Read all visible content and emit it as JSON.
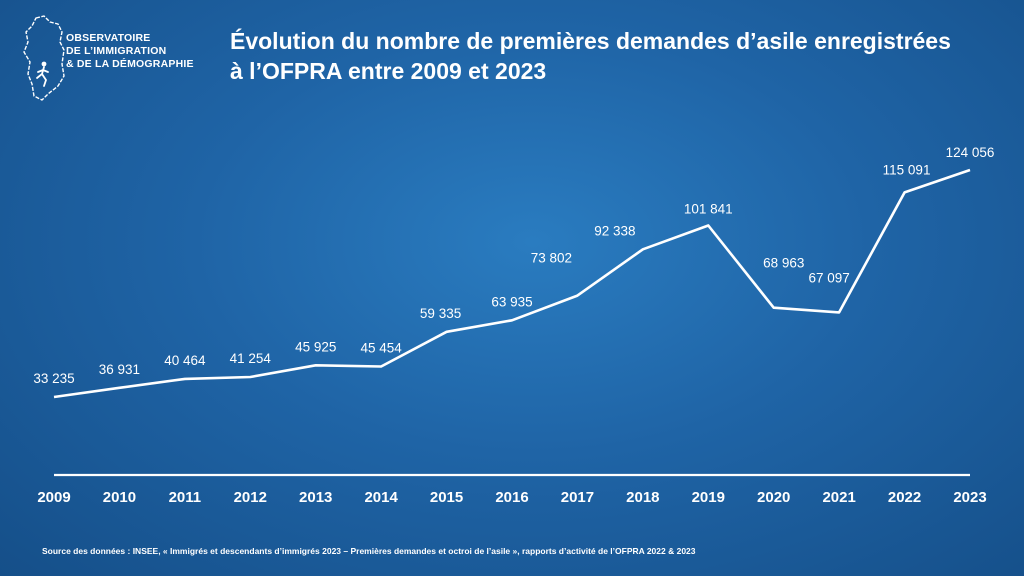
{
  "logo": {
    "line1": "OBSERVATOIRE",
    "line2": "DE L’IMMIGRATION",
    "line3": "& DE LA DÉMOGRAPHIE",
    "icon": "france-map-runner-icon"
  },
  "title": {
    "line1": "Évolution du nombre de premières demandes d’asile enregistrées",
    "line2": "à l’OFPRA entre 2009 et 2023"
  },
  "source": "Source des données : INSEE, « Immigrés et descendants d’immigrés 2023 – Premières demandes et octroi de l’asile », rapports d’activité de l’OFPRA 2022 & 2023",
  "chart_data": {
    "type": "line",
    "x": [
      2009,
      2010,
      2011,
      2012,
      2013,
      2014,
      2015,
      2016,
      2017,
      2018,
      2019,
      2020,
      2021,
      2022,
      2023
    ],
    "values": [
      33235,
      36931,
      40464,
      41254,
      45925,
      45454,
      59335,
      63935,
      73802,
      92338,
      101841,
      68963,
      67097,
      115091,
      124056
    ],
    "labels": [
      "33 235",
      "36 931",
      "40 464",
      "41 254",
      "45 925",
      "45 454",
      "59 335",
      "63 935",
      "73 802",
      "92 338",
      "101 841",
      "68 963",
      "67 097",
      "115 091",
      "124 056"
    ],
    "title": "Évolution du nombre de premières demandes d’asile enregistrées à l’OFPRA entre 2009 et 2023",
    "xlabel": "",
    "ylabel": "",
    "ylim": [
      0,
      130000
    ],
    "grid": false,
    "legend": "none",
    "line_color": "#ffffff",
    "background_color": "#1f64a6"
  }
}
